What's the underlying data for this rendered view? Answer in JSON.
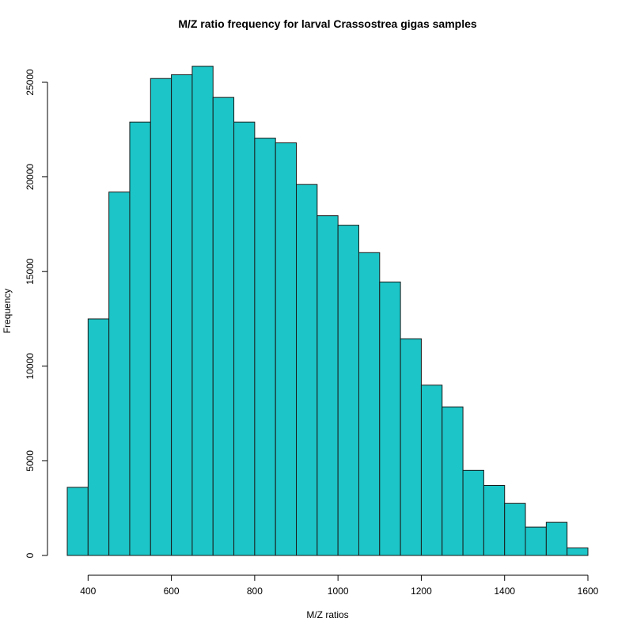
{
  "chart_data": {
    "type": "bar",
    "title": "M/Z ratio frequency for larval Crassostrea gigas samples",
    "xlabel": "M/Z ratios",
    "ylabel": "Frequency",
    "bin_width": 50,
    "bin_edges": [
      350,
      400,
      450,
      500,
      550,
      600,
      650,
      700,
      750,
      800,
      850,
      900,
      950,
      1000,
      1050,
      1100,
      1150,
      1200,
      1250,
      1300,
      1350,
      1400,
      1450,
      1500,
      1550,
      1600
    ],
    "values": [
      3600,
      12500,
      19200,
      22900,
      25200,
      25400,
      25850,
      24200,
      22900,
      22050,
      21800,
      19600,
      17950,
      17450,
      16000,
      14450,
      11450,
      9000,
      7850,
      4500,
      3700,
      2750,
      1500,
      1750,
      400
    ],
    "x_ticks": [
      400,
      600,
      800,
      1000,
      1200,
      1400,
      1600
    ],
    "y_ticks": [
      0,
      5000,
      10000,
      15000,
      20000,
      25000
    ],
    "xlim": [
      350,
      1600
    ],
    "ylim": [
      0,
      26000
    ],
    "grid": false,
    "legend": "none"
  },
  "colors": {
    "bar_fill": "#1cc5c7",
    "bar_stroke": "#1a1a1a",
    "axis": "#000000",
    "background": "#ffffff"
  }
}
